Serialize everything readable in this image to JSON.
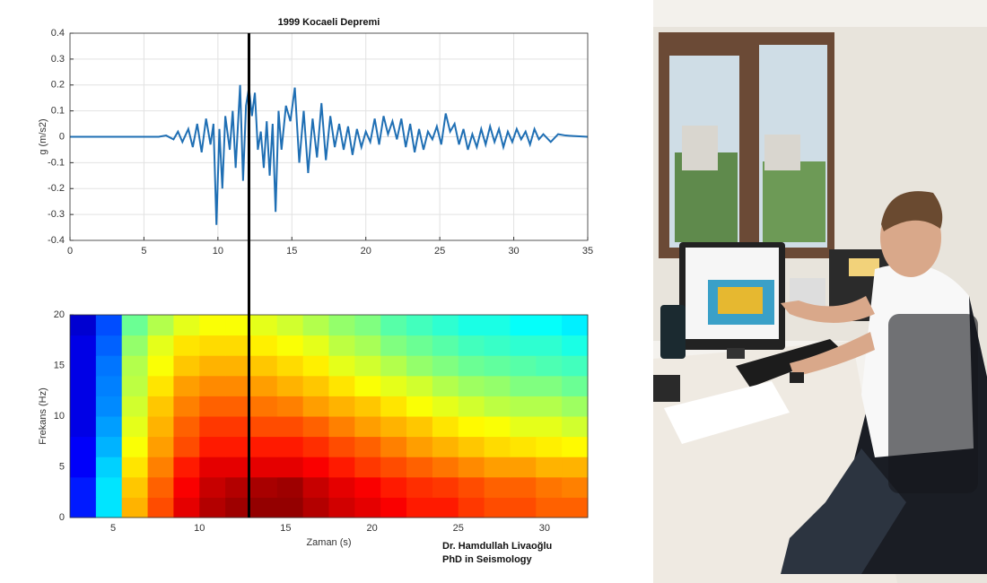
{
  "chart_data": [
    {
      "type": "line",
      "title": "1999 Kocaeli Depremi",
      "ylabel": "g (m/s2)",
      "color": "#1f6fb4",
      "grid": true,
      "xlim": [
        0,
        35
      ],
      "ylim": [
        -0.4,
        0.4
      ],
      "xticks": [
        0,
        5,
        10,
        15,
        20,
        25,
        30,
        35
      ],
      "yticks": [
        -0.4,
        -0.3,
        -0.2,
        -0.1,
        0,
        0.1,
        0.2,
        0.3,
        0.4
      ],
      "cursor_x": 12.1,
      "x": [
        0,
        6,
        6.5,
        7,
        7.3,
        7.6,
        8,
        8.3,
        8.6,
        8.9,
        9.2,
        9.5,
        9.7,
        9.9,
        10.1,
        10.3,
        10.5,
        10.8,
        11,
        11.2,
        11.5,
        11.7,
        11.9,
        12.1,
        12.3,
        12.5,
        12.7,
        12.9,
        13.1,
        13.3,
        13.5,
        13.7,
        13.9,
        14.1,
        14.3,
        14.6,
        14.9,
        15.2,
        15.5,
        15.8,
        16.1,
        16.4,
        16.7,
        17,
        17.3,
        17.6,
        17.9,
        18.2,
        18.5,
        18.8,
        19.1,
        19.4,
        19.7,
        20,
        20.3,
        20.6,
        20.9,
        21.2,
        21.5,
        21.8,
        22.1,
        22.4,
        22.7,
        23,
        23.3,
        23.6,
        23.9,
        24.2,
        24.5,
        24.8,
        25.1,
        25.4,
        25.7,
        26,
        26.3,
        26.6,
        26.9,
        27.2,
        27.5,
        27.8,
        28.1,
        28.4,
        28.7,
        29,
        29.3,
        29.6,
        29.9,
        30.2,
        30.5,
        30.8,
        31.1,
        31.4,
        31.7,
        32,
        32.5,
        33,
        33.5,
        34,
        35
      ],
      "values": [
        0,
        0,
        0.005,
        -0.01,
        0.02,
        -0.02,
        0.03,
        -0.04,
        0.05,
        -0.06,
        0.07,
        -0.03,
        0.05,
        -0.34,
        0.03,
        -0.2,
        0.08,
        -0.05,
        0.1,
        -0.12,
        0.2,
        -0.17,
        0.12,
        0.19,
        0.08,
        0.17,
        -0.05,
        0.02,
        -0.12,
        0.06,
        -0.15,
        0.05,
        -0.29,
        0.1,
        -0.05,
        0.12,
        0.06,
        0.19,
        -0.1,
        0.1,
        -0.14,
        0.07,
        -0.08,
        0.13,
        -0.09,
        0.08,
        -0.04,
        0.05,
        -0.05,
        0.04,
        -0.07,
        0.03,
        -0.04,
        0.02,
        -0.02,
        0.07,
        -0.03,
        0.08,
        0.01,
        0.06,
        -0.01,
        0.07,
        -0.04,
        0.05,
        -0.06,
        0.03,
        -0.05,
        0.02,
        -0.01,
        0.04,
        -0.03,
        0.09,
        0.02,
        0.05,
        -0.03,
        0.03,
        -0.05,
        0.01,
        -0.04,
        0.03,
        -0.03,
        0.04,
        -0.02,
        0.03,
        -0.04,
        0.02,
        -0.02,
        0.03,
        -0.01,
        0.02,
        -0.03,
        0.03,
        -0.01,
        0.01,
        -0.02,
        0.01,
        0.005,
        0.003,
        0
      ]
    },
    {
      "type": "heatmap",
      "xlabel": "Zaman (s)",
      "ylabel": "Frekans (Hz)",
      "colormap": "jet",
      "xlim": [
        2.5,
        32.5
      ],
      "ylim": [
        0,
        20
      ],
      "zlim": [
        0,
        1
      ],
      "xticks": [
        5,
        10,
        15,
        20,
        25,
        30
      ],
      "yticks": [
        0,
        5,
        10,
        15,
        20
      ],
      "x_bins": [
        2.5,
        4,
        5.5,
        7,
        8.5,
        10,
        11.5,
        13,
        14.5,
        16,
        17.5,
        19,
        20.5,
        22,
        23.5,
        25,
        26.5,
        28,
        29.5,
        31,
        32.5
      ],
      "y_bins": [
        0,
        2,
        4,
        6,
        8,
        10,
        12,
        14,
        16,
        18,
        20
      ],
      "z": [
        [
          0.15,
          0.35,
          0.7,
          0.8,
          0.9,
          0.95,
          0.97,
          0.98,
          0.98,
          0.95,
          0.92,
          0.9,
          0.88,
          0.85,
          0.85,
          0.82,
          0.8,
          0.8,
          0.78,
          0.78
        ],
        [
          0.15,
          0.35,
          0.68,
          0.78,
          0.88,
          0.93,
          0.95,
          0.96,
          0.97,
          0.93,
          0.9,
          0.88,
          0.85,
          0.83,
          0.82,
          0.8,
          0.78,
          0.78,
          0.76,
          0.75
        ],
        [
          0.12,
          0.33,
          0.65,
          0.75,
          0.85,
          0.9,
          0.9,
          0.9,
          0.9,
          0.88,
          0.85,
          0.82,
          0.8,
          0.78,
          0.76,
          0.74,
          0.72,
          0.72,
          0.7,
          0.7
        ],
        [
          0.12,
          0.3,
          0.62,
          0.72,
          0.8,
          0.85,
          0.85,
          0.85,
          0.85,
          0.83,
          0.8,
          0.78,
          0.75,
          0.72,
          0.7,
          0.68,
          0.66,
          0.65,
          0.64,
          0.63
        ],
        [
          0.1,
          0.28,
          0.6,
          0.7,
          0.78,
          0.82,
          0.82,
          0.8,
          0.8,
          0.78,
          0.75,
          0.72,
          0.7,
          0.68,
          0.65,
          0.63,
          0.62,
          0.6,
          0.6,
          0.58
        ],
        [
          0.1,
          0.26,
          0.58,
          0.68,
          0.75,
          0.78,
          0.78,
          0.76,
          0.75,
          0.72,
          0.7,
          0.68,
          0.65,
          0.62,
          0.6,
          0.58,
          0.56,
          0.55,
          0.55,
          0.53
        ],
        [
          0.1,
          0.25,
          0.56,
          0.65,
          0.72,
          0.74,
          0.74,
          0.72,
          0.7,
          0.68,
          0.65,
          0.62,
          0.6,
          0.58,
          0.55,
          0.53,
          0.52,
          0.5,
          0.5,
          0.48
        ],
        [
          0.1,
          0.24,
          0.55,
          0.62,
          0.68,
          0.7,
          0.7,
          0.68,
          0.66,
          0.64,
          0.6,
          0.58,
          0.55,
          0.52,
          0.5,
          0.48,
          0.47,
          0.46,
          0.45,
          0.44
        ],
        [
          0.1,
          0.22,
          0.52,
          0.6,
          0.65,
          0.66,
          0.66,
          0.64,
          0.62,
          0.6,
          0.56,
          0.54,
          0.5,
          0.48,
          0.46,
          0.44,
          0.43,
          0.42,
          0.42,
          0.4
        ],
        [
          0.08,
          0.2,
          0.48,
          0.55,
          0.6,
          0.62,
          0.62,
          0.6,
          0.58,
          0.55,
          0.52,
          0.5,
          0.46,
          0.44,
          0.42,
          0.4,
          0.4,
          0.38,
          0.38,
          0.36
        ]
      ]
    }
  ],
  "credit": [
    "Dr. Hamdullah Livaoğlu",
    "PhD in Seismology"
  ]
}
